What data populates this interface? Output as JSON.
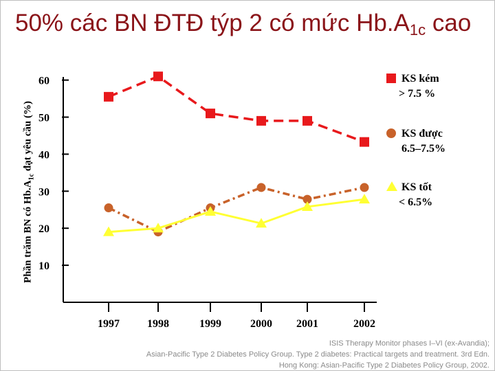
{
  "title": {
    "main": "50% các BN ĐTĐ týp 2 có mức Hb.A",
    "sub": "1c",
    "end": " cao"
  },
  "ylabel": {
    "pre": "Phần trăm BN có Hb.A",
    "sub": "1c",
    "post": " đạt yêu cầu (%)"
  },
  "legend": [
    {
      "line1": "KS kém",
      "line2": "> 7.5 %",
      "color": "#e8191c",
      "marker": "square"
    },
    {
      "line1": "KS được",
      "line2": "6.5–7.5%",
      "color": "#c8622a",
      "marker": "circle"
    },
    {
      "line1": "KS tốt",
      "line2": "< 6.5%",
      "color": "#ffff33",
      "marker": "triangle"
    }
  ],
  "source": [
    "ISIS Therapy Monitor phases I–VI (ex-Avandia);",
    "Asian-Pacific Type 2 Diabetes Policy Group. Type 2 diabetes: Practical targets and treatment. 3rd Edn.",
    "Hong Kong: Asian-Pacific Type 2 Diabetes Policy Group, 2002."
  ],
  "chart_data": {
    "type": "line",
    "categories": [
      "1997",
      "1998",
      "1999",
      "2000",
      "2001",
      "2002"
    ],
    "yticks": [
      "10",
      "20",
      "30",
      "40",
      "50",
      "60"
    ],
    "ylim": [
      0,
      70
    ],
    "grid": false,
    "legend_position": "right",
    "series": [
      {
        "name": "KS kém > 7.5 %",
        "color": "#e8191c",
        "marker": "square",
        "style": "dashed",
        "x": [
          "1997",
          "1998",
          "1999",
          "2000",
          "2001",
          "2002"
        ],
        "values": [
          55.5,
          61,
          51,
          49,
          49,
          43.3
        ]
      },
      {
        "name": "KS được 6.5–7.5%",
        "color": "#c8622a",
        "marker": "circle",
        "style": "dashdot",
        "x": [
          "1997",
          "1998",
          "1999",
          "2000",
          "2001",
          "2002"
        ],
        "values": [
          25.5,
          19,
          25.5,
          31,
          27.8,
          31
        ]
      },
      {
        "name": "KS tốt < 6.5%",
        "color": "#ffff33",
        "marker": "triangle",
        "style": "solid",
        "x": [
          "1997",
          "1998",
          "1999",
          "2000",
          "2001",
          "2002"
        ],
        "values": [
          19,
          20,
          24.5,
          21.3,
          25.8,
          27.8
        ]
      }
    ]
  }
}
